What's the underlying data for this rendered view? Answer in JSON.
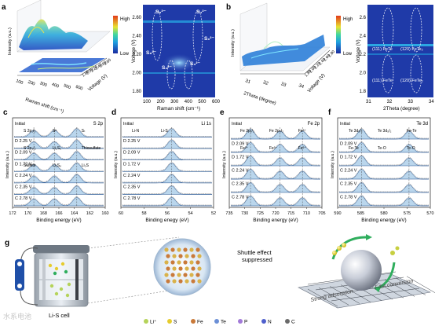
{
  "panels": {
    "a": {
      "letter": "a",
      "surface_axes": {
        "y_label": "Intensity (a.u.)",
        "x_label": "Raman shift (cm⁻¹)",
        "z_label": "Voltage (V)",
        "x_ticks": [
          "100",
          "200",
          "300",
          "400",
          "500",
          "600"
        ],
        "z_ticks": [
          "1.80",
          "2.00",
          "2.20",
          "2.40",
          "2.60",
          "2.80"
        ]
      },
      "colorbar": {
        "high": "High",
        "low": "Low"
      },
      "map": {
        "y_label": "Voltage (V)",
        "x_label": "Raman shift (cm⁻¹)",
        "x_ticks": [
          "100",
          "200",
          "300",
          "400",
          "500",
          "600"
        ],
        "y_ticks": [
          "2.60",
          "2.40",
          "2.20",
          "2.00",
          "1.80"
        ],
        "labels": [
          "S₈²⁻",
          "S₄²⁻",
          "S₈²⁻",
          "S₆²⁻",
          "S₂²⁻",
          "S₃²⁻"
        ]
      }
    },
    "b": {
      "letter": "b",
      "surface_axes": {
        "y_label": "Intensity (a.u.)",
        "x_label": "2Theta (degree)",
        "z_label": "Voltage (V)",
        "x_ticks": [
          "31",
          "32",
          "33",
          "34"
        ],
        "z_ticks": [
          "1.80",
          "2.00",
          "2.20",
          "2.40",
          "2.60",
          "2.80"
        ]
      },
      "colorbar": {
        "high": "High",
        "low": "Low"
      },
      "map": {
        "y_label": "Voltage (V)",
        "x_label": "2Theta (degree)",
        "x_ticks": [
          "31",
          "32",
          "33",
          "34"
        ],
        "y_ticks": [
          "2.6",
          "2.4",
          "2.2",
          "2.0",
          "1.8"
        ],
        "labels": [
          "(111) FeTe",
          "(120) FeTe₂",
          "(111) FeTe",
          "(120) FeTe₂"
        ]
      }
    },
    "c": {
      "letter": "c",
      "header_left": "Initial",
      "header_right": "S 2p",
      "rows": [
        "Initial",
        "D 2.25 V",
        "D 2.09 V",
        "D 1.72 V",
        "C 2.24 V",
        "C 2.35 V",
        "C 2.78 V"
      ],
      "annotations": [
        "S 2p₁/₂",
        "Sᵇ",
        "Sₜ",
        "S 2p₃/₂",
        "Li₂S₆",
        "Thiosulfate",
        "Sulfate",
        "Li₂S₄",
        "Li₂S"
      ],
      "x_ticks": [
        "172",
        "170",
        "168",
        "166",
        "164",
        "162",
        "160"
      ],
      "x_label": "Binding energy (eV)",
      "y_label": "Intensity (a.u.)"
    },
    "d": {
      "letter": "d",
      "header_left": "Initial",
      "header_right": "Li 1s",
      "rows": [
        "Initial",
        "D 2.25 V",
        "D 2.09 V",
        "D 1.72 V",
        "C 2.24 V",
        "C 2.35 V",
        "C 2.78 V"
      ],
      "annotations": [
        "Li-N",
        "Li-S"
      ],
      "x_ticks": [
        "60",
        "58",
        "56",
        "54",
        "52"
      ],
      "x_label": "Binding enegy (eV)",
      "y_label": "Intensity (a.u.)"
    },
    "e": {
      "letter": "e",
      "header_left": "Initial",
      "header_right": "Fe 2p",
      "rows": [
        "Initial",
        "D 2.09 V",
        "D 1.72 V",
        "C 2.24 V",
        "C 2.35 V",
        "C 2.78 V"
      ],
      "annotations": [
        "Fe 2p₁/₂",
        "Fe 2p₃/₂",
        "Fe³⁺",
        "Fe²⁺",
        "Fe³⁺",
        "Fe²⁺"
      ],
      "x_ticks": [
        "735",
        "730",
        "725",
        "720",
        "715",
        "710",
        "705"
      ],
      "x_label": "Binding energy (eV)",
      "y_label": "Intensity (a.u.)"
    },
    "f": {
      "letter": "f",
      "header_left": "Initial",
      "header_right": "Te 3d",
      "rows": [
        "Initial",
        "D 2.09 V",
        "D 1.72 V",
        "C 2.24 V",
        "C 2.35 V",
        "C 2.78 V"
      ],
      "annotations": [
        "Te 3d₃/₂",
        "Te 3d₅/₂",
        "Fe-Te",
        "Fe-Te",
        "Te-O",
        "Te-O"
      ],
      "x_ticks": [
        "590",
        "585",
        "580",
        "575",
        "570"
      ],
      "x_label": "Binding energy (eV)",
      "y_label": "Intensity (a.u.)"
    },
    "g": {
      "letter": "g",
      "cell_label": "Li-S cell",
      "shuttle_label_1": "Shuttle effect",
      "shuttle_label_2": "suppressed",
      "arc_left": "Strong adsorption",
      "arc_right": "Fast conversion",
      "legend": [
        {
          "label": "Li⁺",
          "color": "#b5d35a"
        },
        {
          "label": "S",
          "color": "#e6cc2e"
        },
        {
          "label": "Fe",
          "color": "#c97a3a"
        },
        {
          "label": "Te",
          "color": "#6b8fd6"
        },
        {
          "label": "P",
          "color": "#a27ad8"
        },
        {
          "label": "N",
          "color": "#4f5fcc"
        },
        {
          "label": "C",
          "color": "#6a6a6a"
        }
      ]
    },
    "watermark": "水系电池"
  },
  "colors": {
    "spectrum_fill": "#9cc4e4",
    "spectrum_line": "#1d4f8f",
    "raw": "#555555",
    "map_bg": "#1f3aa8"
  }
}
